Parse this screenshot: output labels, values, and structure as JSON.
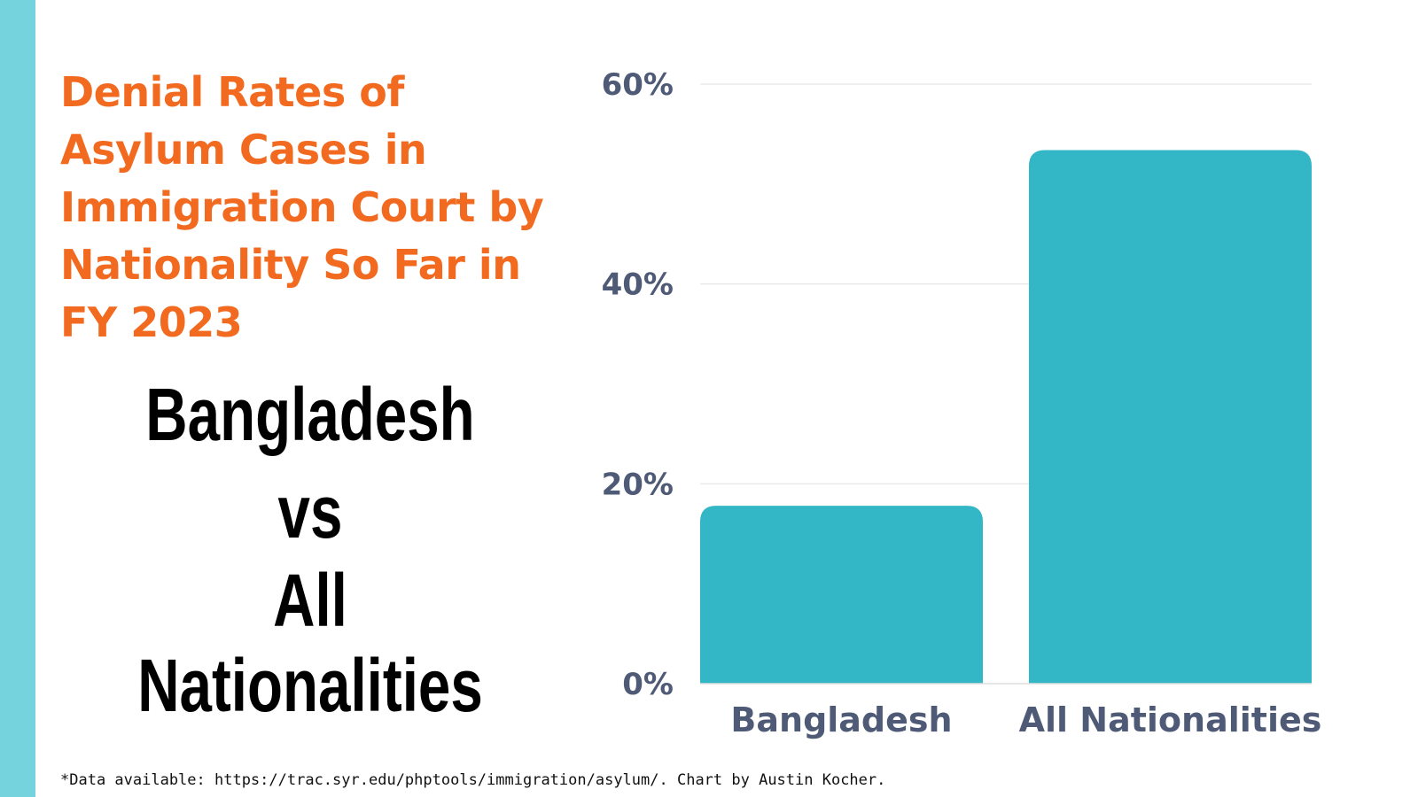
{
  "title": "Denial Rates of Asylum Cases in Immigration Court by Nationality So Far in FY 2023",
  "headline": {
    "line1": "Bangladesh",
    "line2": "vs",
    "line3": "All Nationalities"
  },
  "footnote": "*Data available: https://trac.syr.edu/phptools/immigration/asylum/. Chart by Austin Kocher.",
  "colors": {
    "bar": "#33b6c5",
    "accent": "#f26a1f",
    "side_bar": "#74d3dc",
    "axis_text": "#4f5b76",
    "grid": "#e6e6e6"
  },
  "chart_data": {
    "type": "bar",
    "title": "Denial Rates of Asylum Cases in Immigration Court by Nationality So Far in FY 2023",
    "xlabel": "",
    "ylabel": "",
    "categories": [
      "Bangladesh",
      "All Nationalities"
    ],
    "values": [
      17.8,
      53.4
    ],
    "ylim": [
      0,
      60
    ],
    "yticks": [
      0,
      20,
      40,
      60
    ],
    "ytick_labels": [
      "0%",
      "20%",
      "40%",
      "60%"
    ],
    "grid": true,
    "legend": "none"
  }
}
